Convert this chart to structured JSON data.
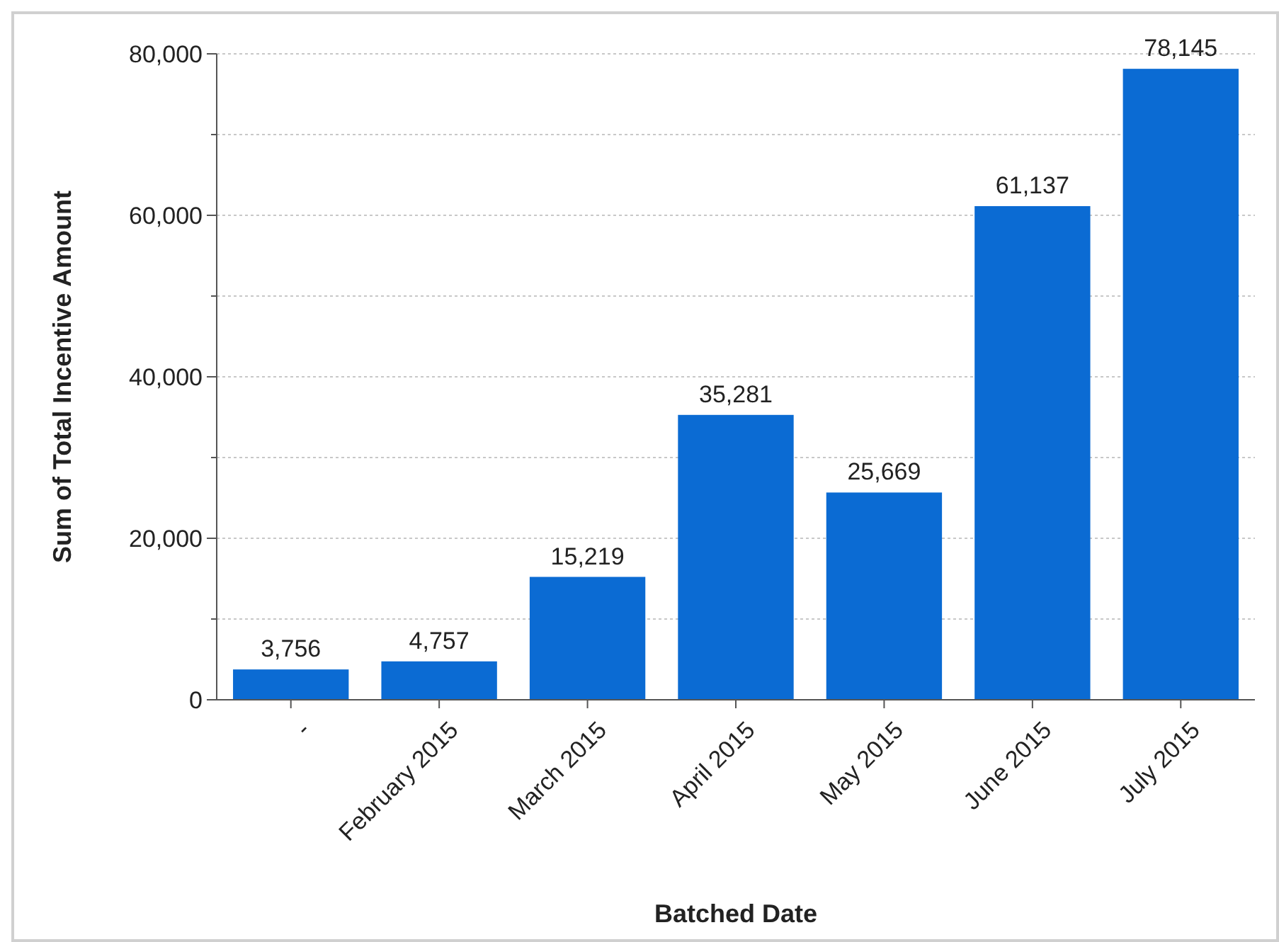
{
  "chart_data": {
    "type": "bar",
    "xlabel": "Batched Date",
    "ylabel": "Sum of Total Incentive Amount",
    "categories": [
      "-",
      "February 2015",
      "March 2015",
      "April 2015",
      "May 2015",
      "June 2015",
      "July 2015"
    ],
    "values": [
      3756,
      4757,
      15219,
      35281,
      25669,
      61137,
      78145
    ],
    "color": "#0b6bd3",
    "ylim": [
      0,
      80000
    ],
    "yticks": [
      0,
      {
        "value": 10000,
        "label": null
      },
      {
        "value": 20000,
        "label": "20,000"
      },
      {
        "value": 30000,
        "label": null
      },
      {
        "value": 40000,
        "label": "40,000"
      },
      {
        "value": 50000,
        "label": null
      },
      {
        "value": 60000,
        "label": "60,000"
      },
      {
        "value": 70000,
        "label": null
      },
      {
        "value": 80000,
        "label": "80,000"
      }
    ],
    "value_labels": [
      "3,756",
      "4,757",
      "15,219",
      "35,281",
      "25,669",
      "61,137",
      "78,145"
    ],
    "grid": "y"
  }
}
